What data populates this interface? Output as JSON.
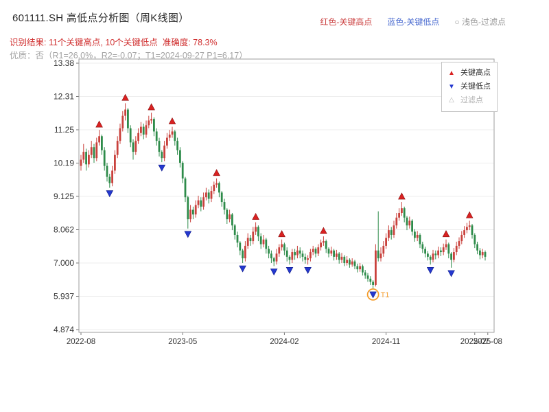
{
  "header": {
    "title": "601111.SH 高低点分析图（周K线图）",
    "legend_inline": {
      "high": "红色-关键高点",
      "low": "蓝色-关键低点",
      "filtered": "○ 浅色-过滤点"
    },
    "result_line": "识别结果: 11个关键高点, 10个关键低点  准确度: 78.3%",
    "quality_line": "优质：否（R1=26.0%，R2=-0.07；T1=2024-09-27 P1=6.17）"
  },
  "colors": {
    "title": "#2b2b2b",
    "result_text": "#d03030",
    "quality_text": "#a3a3a3",
    "legend_high_text": "#cc4444",
    "legend_low_text": "#4a6bd0",
    "legend_filtered_text": "#9a9a9a"
  },
  "legend_box": {
    "items": [
      {
        "label": "关键高点",
        "glyph": "▲",
        "marker": "up-triangle"
      },
      {
        "label": "关键低点",
        "glyph": "▼",
        "marker": "down-triangle"
      },
      {
        "label": "过滤点",
        "glyph": "△",
        "marker": "hollow-triangle"
      }
    ]
  },
  "chart_data": {
    "type": "candlestick",
    "title": "601111.SH 高低点分析图（周K线图）",
    "symbol": "601111.SH",
    "frequency": "周K线",
    "stats": {
      "key_high_count": 11,
      "key_low_count": 10,
      "accuracy": "78.3%",
      "premium": "否",
      "r1": "26.0%",
      "r2": "-0.07",
      "t1_date": "2024-09-27",
      "p1": "6.17"
    },
    "ylim": [
      4.874,
      13.38
    ],
    "y_ticks": [
      {
        "label": "13.38",
        "value": 13.38
      },
      {
        "label": "12.31",
        "value": 12.3167
      },
      {
        "label": "11.25",
        "value": 11.2534
      },
      {
        "label": "10.19",
        "value": 10.1901
      },
      {
        "label": "9.125",
        "value": 9.1268
      },
      {
        "label": "8.062",
        "value": 8.0635
      },
      {
        "label": "7.000",
        "value": 7.0002
      },
      {
        "label": "5.937",
        "value": 5.9369
      },
      {
        "label": "4.874",
        "value": 4.874
      }
    ],
    "x_ticks": [
      {
        "label": "2022-08",
        "index": 0
      },
      {
        "label": "2023-05",
        "index": 39
      },
      {
        "label": "2024-02",
        "index": 78
      },
      {
        "label": "2024-11",
        "index": 117
      },
      {
        "label": "2025-07",
        "index": 151
      },
      {
        "label": "2025-08",
        "index": 156
      }
    ],
    "candles": [
      [
        10.1,
        10.45,
        9.95,
        10.3
      ],
      [
        10.3,
        10.8,
        10.2,
        10.55
      ],
      [
        10.55,
        10.65,
        9.95,
        10.15
      ],
      [
        10.15,
        10.6,
        10.05,
        10.45
      ],
      [
        10.45,
        10.9,
        10.35,
        10.7
      ],
      [
        10.7,
        10.8,
        10.2,
        10.35
      ],
      [
        10.35,
        11.0,
        10.25,
        10.85
      ],
      [
        10.85,
        11.25,
        10.75,
        11.05
      ],
      [
        11.05,
        11.1,
        10.45,
        10.6
      ],
      [
        10.6,
        10.7,
        9.95,
        10.1
      ],
      [
        10.1,
        10.2,
        9.6,
        9.75
      ],
      [
        9.75,
        9.85,
        9.4,
        9.55
      ],
      [
        9.55,
        10.1,
        9.45,
        9.95
      ],
      [
        9.95,
        10.6,
        9.85,
        10.45
      ],
      [
        10.45,
        11.05,
        10.35,
        10.9
      ],
      [
        10.9,
        11.45,
        10.8,
        11.3
      ],
      [
        11.3,
        11.85,
        11.2,
        11.7
      ],
      [
        11.7,
        12.1,
        11.55,
        11.9
      ],
      [
        11.9,
        11.95,
        11.15,
        11.3
      ],
      [
        11.3,
        11.4,
        10.7,
        10.85
      ],
      [
        10.85,
        10.95,
        10.3,
        10.55
      ],
      [
        10.55,
        11.05,
        10.45,
        10.9
      ],
      [
        10.9,
        11.3,
        10.8,
        11.15
      ],
      [
        11.15,
        11.5,
        11.05,
        11.35
      ],
      [
        11.35,
        11.45,
        10.95,
        11.1
      ],
      [
        11.1,
        11.55,
        11.0,
        11.4
      ],
      [
        11.4,
        11.7,
        11.3,
        11.55
      ],
      [
        11.55,
        11.8,
        11.45,
        11.6
      ],
      [
        11.6,
        11.65,
        11.05,
        11.2
      ],
      [
        11.2,
        11.3,
        10.75,
        10.9
      ],
      [
        10.9,
        11.0,
        10.4,
        10.55
      ],
      [
        10.55,
        10.6,
        10.22,
        10.35
      ],
      [
        10.35,
        10.9,
        10.25,
        10.75
      ],
      [
        10.75,
        11.15,
        10.65,
        11.0
      ],
      [
        11.0,
        11.25,
        10.9,
        11.1
      ],
      [
        11.1,
        11.35,
        11.0,
        11.2
      ],
      [
        11.2,
        11.25,
        10.75,
        10.9
      ],
      [
        10.9,
        11.0,
        10.45,
        10.6
      ],
      [
        10.6,
        10.7,
        10.05,
        10.2
      ],
      [
        10.2,
        10.25,
        9.55,
        9.7
      ],
      [
        9.7,
        9.75,
        8.95,
        9.1
      ],
      [
        9.1,
        9.15,
        8.1,
        8.4
      ],
      [
        8.4,
        8.85,
        8.3,
        8.7
      ],
      [
        8.7,
        8.8,
        8.4,
        8.55
      ],
      [
        8.55,
        9.0,
        8.45,
        8.85
      ],
      [
        8.85,
        9.15,
        8.75,
        9.0
      ],
      [
        9.0,
        9.1,
        8.65,
        8.8
      ],
      [
        8.8,
        9.25,
        8.7,
        9.1
      ],
      [
        9.1,
        9.4,
        9.0,
        9.25
      ],
      [
        9.25,
        9.35,
        8.9,
        9.05
      ],
      [
        9.05,
        9.45,
        8.95,
        9.3
      ],
      [
        9.3,
        9.6,
        9.2,
        9.5
      ],
      [
        9.5,
        9.7,
        9.4,
        9.55
      ],
      [
        9.55,
        9.6,
        9.1,
        9.25
      ],
      [
        9.25,
        9.3,
        8.8,
        8.95
      ],
      [
        8.95,
        9.05,
        8.55,
        8.7
      ],
      [
        8.7,
        8.75,
        8.25,
        8.4
      ],
      [
        8.4,
        8.7,
        8.3,
        8.55
      ],
      [
        8.55,
        8.6,
        8.05,
        8.2
      ],
      [
        8.2,
        8.25,
        7.75,
        7.9
      ],
      [
        7.9,
        8.0,
        7.5,
        7.65
      ],
      [
        7.65,
        7.7,
        7.25,
        7.4
      ],
      [
        7.4,
        7.45,
        7.0,
        7.15
      ],
      [
        7.15,
        7.7,
        7.05,
        7.55
      ],
      [
        7.55,
        7.95,
        7.45,
        7.8
      ],
      [
        7.8,
        7.9,
        7.55,
        7.7
      ],
      [
        7.7,
        8.15,
        7.6,
        8.0
      ],
      [
        8.0,
        8.3,
        7.9,
        8.15
      ],
      [
        8.15,
        8.2,
        7.7,
        7.85
      ],
      [
        7.85,
        7.95,
        7.45,
        7.6
      ],
      [
        7.6,
        7.9,
        7.5,
        7.75
      ],
      [
        7.75,
        7.8,
        7.3,
        7.45
      ],
      [
        7.45,
        7.55,
        7.15,
        7.3
      ],
      [
        7.3,
        7.4,
        7.0,
        7.15
      ],
      [
        7.15,
        7.2,
        6.9,
        7.05
      ],
      [
        7.05,
        7.45,
        6.95,
        7.3
      ],
      [
        7.3,
        7.6,
        7.2,
        7.5
      ],
      [
        7.5,
        7.75,
        7.4,
        7.6
      ],
      [
        7.6,
        7.65,
        7.25,
        7.4
      ],
      [
        7.4,
        7.5,
        7.05,
        7.2
      ],
      [
        7.2,
        7.25,
        6.95,
        7.1
      ],
      [
        7.1,
        7.45,
        7.0,
        7.35
      ],
      [
        7.35,
        7.45,
        7.1,
        7.25
      ],
      [
        7.25,
        7.55,
        7.15,
        7.4
      ],
      [
        7.4,
        7.5,
        7.15,
        7.3
      ],
      [
        7.3,
        7.4,
        7.05,
        7.2
      ],
      [
        7.2,
        7.3,
        6.98,
        7.1
      ],
      [
        7.1,
        7.25,
        6.95,
        7.15
      ],
      [
        7.15,
        7.45,
        7.05,
        7.35
      ],
      [
        7.35,
        7.55,
        7.25,
        7.45
      ],
      [
        7.45,
        7.5,
        7.18,
        7.3
      ],
      [
        7.3,
        7.6,
        7.22,
        7.5
      ],
      [
        7.5,
        7.75,
        7.4,
        7.65
      ],
      [
        7.65,
        7.85,
        7.55,
        7.7
      ],
      [
        7.7,
        7.75,
        7.32,
        7.45
      ],
      [
        7.45,
        7.5,
        7.18,
        7.3
      ],
      [
        7.3,
        7.52,
        7.22,
        7.4
      ],
      [
        7.4,
        7.45,
        7.08,
        7.2
      ],
      [
        7.2,
        7.42,
        7.1,
        7.3
      ],
      [
        7.3,
        7.35,
        6.98,
        7.1
      ],
      [
        7.1,
        7.32,
        7.0,
        7.2
      ],
      [
        7.2,
        7.25,
        6.9,
        7.0
      ],
      [
        7.0,
        7.22,
        6.92,
        7.1
      ],
      [
        7.1,
        7.15,
        6.85,
        6.95
      ],
      [
        6.95,
        7.15,
        6.88,
        7.05
      ],
      [
        7.05,
        7.1,
        6.8,
        6.9
      ],
      [
        6.9,
        6.98,
        6.7,
        6.8
      ],
      [
        6.8,
        7.0,
        6.72,
        6.9
      ],
      [
        6.9,
        6.95,
        6.6,
        6.7
      ],
      [
        6.7,
        6.78,
        6.5,
        6.6
      ],
      [
        6.6,
        6.68,
        6.4,
        6.5
      ],
      [
        6.5,
        6.58,
        6.3,
        6.4
      ],
      [
        6.4,
        6.45,
        6.17,
        6.3
      ],
      [
        6.3,
        7.6,
        6.25,
        7.4
      ],
      [
        7.4,
        8.65,
        7.05,
        7.15
      ],
      [
        7.15,
        7.5,
        7.05,
        7.3
      ],
      [
        7.3,
        7.7,
        7.2,
        7.55
      ],
      [
        7.55,
        7.95,
        7.45,
        7.8
      ],
      [
        7.8,
        8.2,
        7.7,
        8.05
      ],
      [
        8.05,
        8.15,
        7.75,
        7.9
      ],
      [
        7.9,
        8.35,
        7.8,
        8.2
      ],
      [
        8.2,
        8.6,
        8.1,
        8.45
      ],
      [
        8.45,
        8.75,
        8.35,
        8.6
      ],
      [
        8.6,
        8.95,
        8.5,
        8.75
      ],
      [
        8.75,
        8.8,
        8.3,
        8.45
      ],
      [
        8.45,
        8.5,
        8.05,
        8.2
      ],
      [
        8.2,
        8.48,
        8.1,
        8.35
      ],
      [
        8.35,
        8.4,
        7.88,
        8.0
      ],
      [
        8.0,
        8.08,
        7.68,
        7.8
      ],
      [
        7.8,
        8.02,
        7.7,
        7.9
      ],
      [
        7.9,
        7.95,
        7.48,
        7.6
      ],
      [
        7.6,
        7.68,
        7.32,
        7.45
      ],
      [
        7.45,
        7.52,
        7.18,
        7.3
      ],
      [
        7.3,
        7.38,
        7.08,
        7.2
      ],
      [
        7.2,
        7.25,
        6.95,
        7.1
      ],
      [
        7.1,
        7.42,
        7.02,
        7.3
      ],
      [
        7.3,
        7.4,
        7.12,
        7.25
      ],
      [
        7.25,
        7.52,
        7.15,
        7.4
      ],
      [
        7.4,
        7.5,
        7.22,
        7.35
      ],
      [
        7.35,
        7.62,
        7.25,
        7.5
      ],
      [
        7.5,
        7.75,
        7.42,
        7.6
      ],
      [
        7.6,
        7.65,
        7.15,
        7.3
      ],
      [
        7.3,
        7.35,
        6.85,
        7.1
      ],
      [
        7.1,
        7.48,
        7.02,
        7.35
      ],
      [
        7.35,
        7.68,
        7.25,
        7.55
      ],
      [
        7.55,
        7.82,
        7.45,
        7.7
      ],
      [
        7.7,
        8.02,
        7.6,
        7.9
      ],
      [
        7.9,
        8.18,
        7.8,
        8.05
      ],
      [
        8.05,
        8.28,
        7.95,
        8.15
      ],
      [
        8.15,
        8.35,
        8.05,
        8.2
      ],
      [
        8.2,
        8.25,
        7.78,
        7.9
      ],
      [
        7.9,
        7.95,
        7.48,
        7.6
      ],
      [
        7.6,
        7.68,
        7.28,
        7.4
      ],
      [
        7.4,
        7.48,
        7.12,
        7.25
      ],
      [
        7.25,
        7.45,
        7.15,
        7.35
      ],
      [
        7.35,
        7.4,
        7.08,
        7.2
      ]
    ],
    "key_high_indices": [
      7,
      17,
      27,
      35,
      52,
      67,
      77,
      93,
      123,
      140,
      149
    ],
    "key_low_indices": [
      11,
      31,
      41,
      62,
      74,
      80,
      87,
      112,
      134,
      142
    ],
    "t1": {
      "index": 112,
      "label": "T1",
      "date": "2024-09-27",
      "price": 6.17
    },
    "colors": {
      "up": "#c9413c",
      "down": "#2e8b4a",
      "key_high": "#d92121",
      "key_low": "#2438cf",
      "t1": "#f59d2c",
      "filtered": "#b9b9b9",
      "grid": "#ededed"
    }
  }
}
